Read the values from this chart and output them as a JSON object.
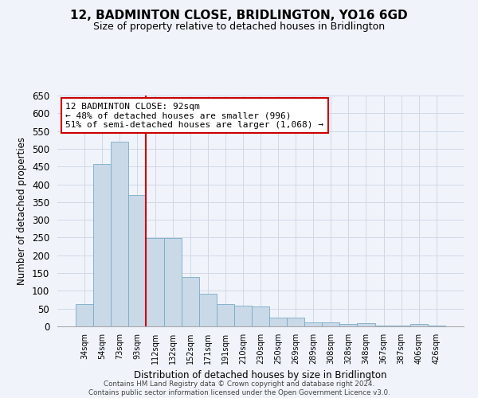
{
  "title": "12, BADMINTON CLOSE, BRIDLINGTON, YO16 6GD",
  "subtitle": "Size of property relative to detached houses in Bridlington",
  "xlabel": "Distribution of detached houses by size in Bridlington",
  "ylabel": "Number of detached properties",
  "categories": [
    "34sqm",
    "54sqm",
    "73sqm",
    "93sqm",
    "112sqm",
    "132sqm",
    "152sqm",
    "171sqm",
    "191sqm",
    "210sqm",
    "230sqm",
    "250sqm",
    "269sqm",
    "289sqm",
    "308sqm",
    "328sqm",
    "348sqm",
    "367sqm",
    "387sqm",
    "406sqm",
    "426sqm"
  ],
  "values": [
    62,
    458,
    520,
    370,
    248,
    248,
    138,
    93,
    62,
    58,
    55,
    25,
    25,
    11,
    12,
    6,
    9,
    3,
    3,
    6,
    3
  ],
  "bar_color": "#c9d9e8",
  "bar_edge_color": "#7aaac8",
  "grid_color": "#d0d8e8",
  "vline_x_index": 3,
  "vline_color": "#cc0000",
  "annotation_text": "12 BADMINTON CLOSE: 92sqm\n← 48% of detached houses are smaller (996)\n51% of semi-detached houses are larger (1,068) →",
  "annotation_box_color": "#ffffff",
  "annotation_box_edge": "#cc0000",
  "ylim": [
    0,
    650
  ],
  "yticks": [
    0,
    50,
    100,
    150,
    200,
    250,
    300,
    350,
    400,
    450,
    500,
    550,
    600,
    650
  ],
  "footnote": "Contains HM Land Registry data © Crown copyright and database right 2024.\nContains public sector information licensed under the Open Government Licence v3.0.",
  "bg_color": "#f0f4fa",
  "title_fontsize": 11,
  "subtitle_fontsize": 9
}
